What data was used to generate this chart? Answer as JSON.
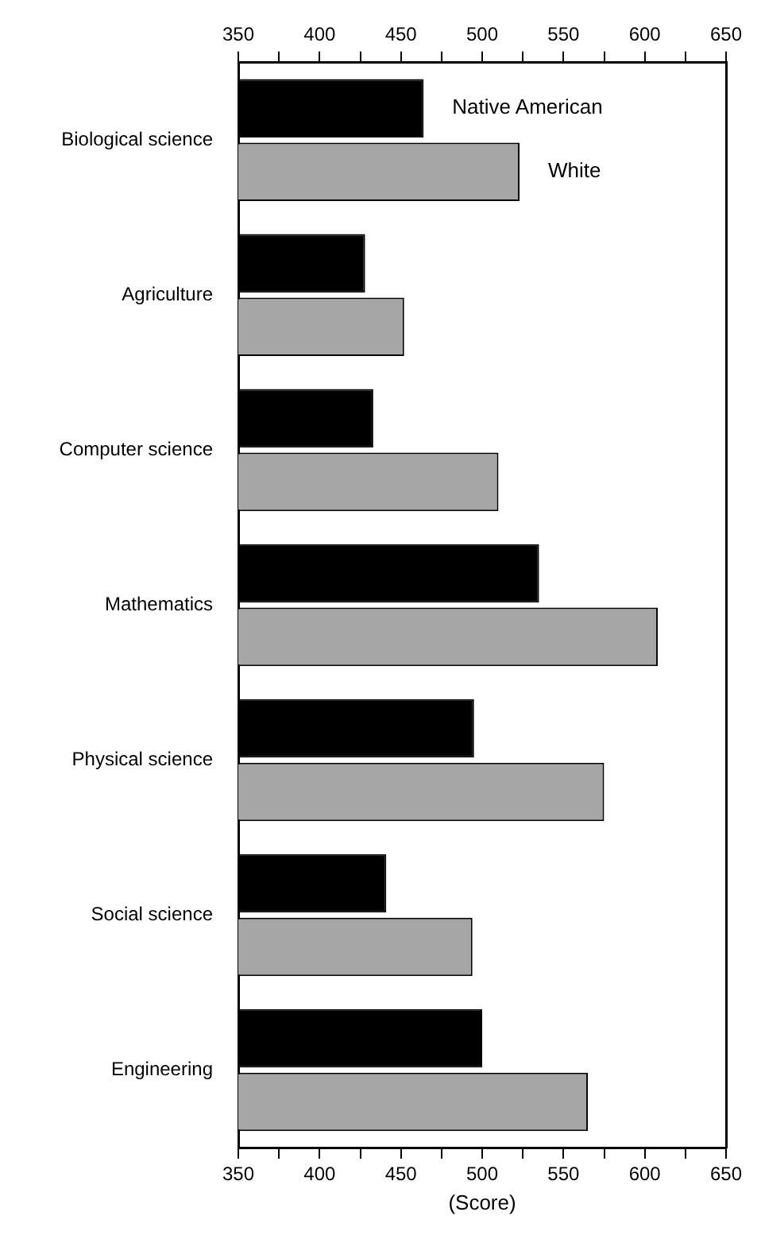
{
  "chart_data": {
    "type": "bar",
    "orientation": "horizontal",
    "xlabel": "(Score)",
    "categories": [
      "Biological science",
      "Agriculture",
      "Computer science",
      "Mathematics",
      "Physical science",
      "Social science",
      "Engineering"
    ],
    "series": [
      {
        "name": "Native American",
        "color": "#000000",
        "values": [
          464,
          428,
          433,
          535,
          495,
          441,
          500
        ]
      },
      {
        "name": "White",
        "color": "#a6a6a6",
        "values": [
          523,
          452,
          510,
          608,
          575,
          494,
          565
        ]
      }
    ],
    "xlim": [
      350,
      650
    ],
    "xticks": [
      350,
      {
        "value": 375,
        "label": null
      },
      400,
      {
        "value": 425,
        "label": null
      },
      450,
      {
        "value": 475,
        "label": null
      },
      500,
      {
        "value": 525,
        "label": null
      },
      550,
      {
        "value": 575,
        "label": null
      },
      600,
      {
        "value": 625,
        "label": null
      },
      650
    ],
    "x2lim": [
      350,
      650
    ],
    "x2ticks": [
      350,
      {
        "value": 375,
        "label": null
      },
      400,
      {
        "value": 425,
        "label": null
      },
      450,
      {
        "value": 475,
        "label": null
      },
      500,
      {
        "value": 525,
        "label": null
      },
      550,
      {
        "value": 575,
        "label": null
      },
      600,
      {
        "value": 625,
        "label": null
      },
      650
    ],
    "grid": false,
    "legend": false
  }
}
